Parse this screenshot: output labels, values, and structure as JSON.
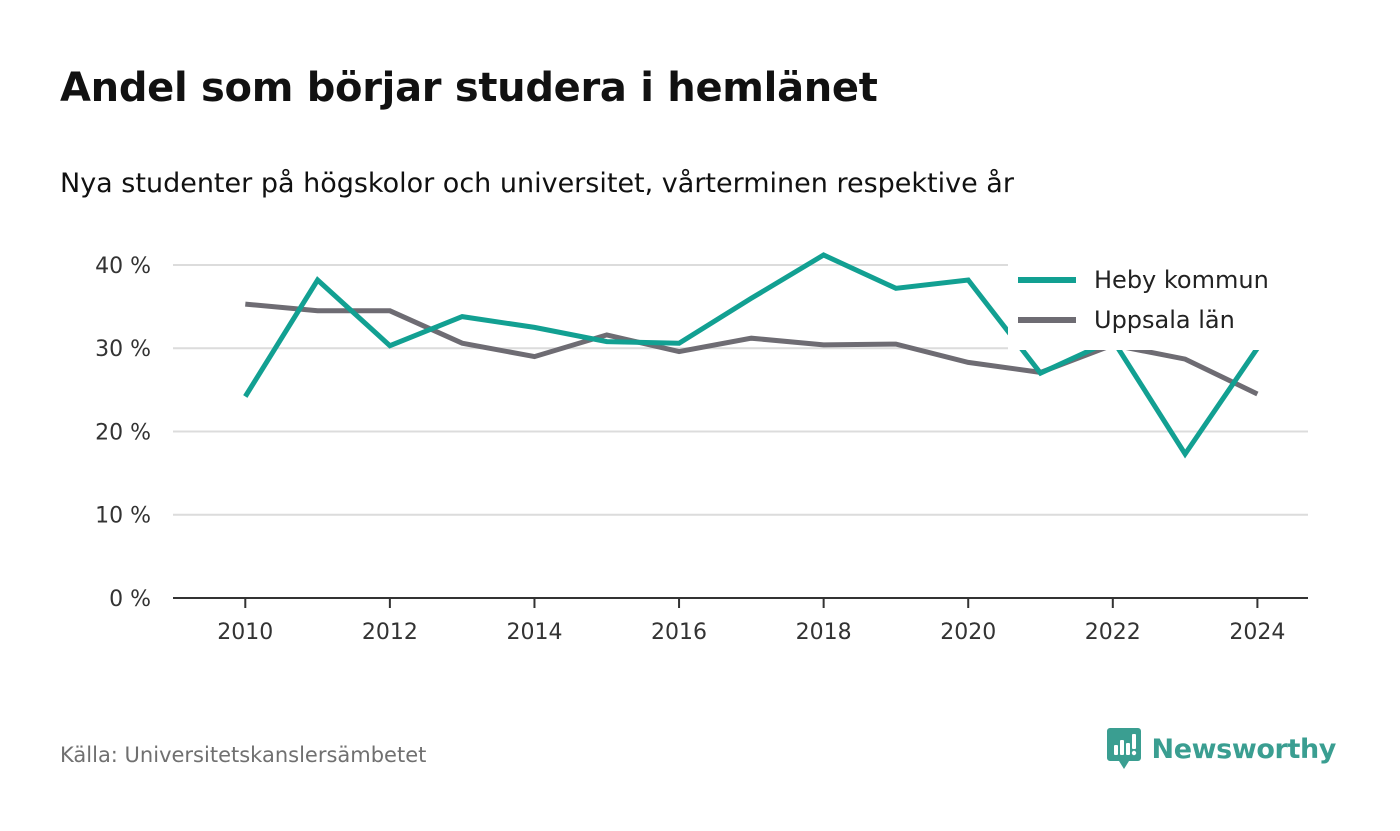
{
  "title": "Andel som börjar studera i hemlänet",
  "subtitle": "Nya studenter på högskolor och universitet, vårterminen respektive år",
  "source": "Källa: Universitetskanslersämbetet",
  "brand": {
    "name": "Newsworthy",
    "logo_icon": "newsworthy-chart-icon",
    "color": "#3a9e91"
  },
  "colors": {
    "grid": "#dcdcdc",
    "axis": "#333333"
  },
  "chart_data": {
    "type": "line",
    "x": [
      2010,
      2011,
      2012,
      2013,
      2014,
      2015,
      2016,
      2017,
      2018,
      2019,
      2020,
      2021,
      2022,
      2023,
      2024
    ],
    "x_ticks": [
      2010,
      2012,
      2014,
      2016,
      2018,
      2020,
      2022,
      2024
    ],
    "x_tick_labels": [
      "2010",
      "2012",
      "2014",
      "2016",
      "2018",
      "2020",
      "2022",
      "2024"
    ],
    "y_ticks": [
      0,
      10,
      20,
      30,
      40
    ],
    "y_tick_labels": [
      "0 %",
      "10 %",
      "20 %",
      "30 %",
      "40 %"
    ],
    "xlim": [
      2009,
      2024.7
    ],
    "ylim": [
      0,
      43
    ],
    "grid": "horizontal",
    "legend_position": "top-right",
    "series": [
      {
        "name": "Heby kommun",
        "color": "#12a092",
        "values": [
          24.2,
          38.2,
          30.3,
          33.8,
          32.5,
          30.8,
          30.6,
          36.0,
          41.2,
          37.2,
          38.2,
          27.0,
          31.0,
          17.3,
          30.0
        ]
      },
      {
        "name": "Uppsala län",
        "color": "#6e6c73",
        "values": [
          35.3,
          34.5,
          34.5,
          30.6,
          29.0,
          31.6,
          29.6,
          31.2,
          30.4,
          30.5,
          28.3,
          27.1,
          30.4,
          28.7,
          24.5
        ]
      }
    ]
  }
}
